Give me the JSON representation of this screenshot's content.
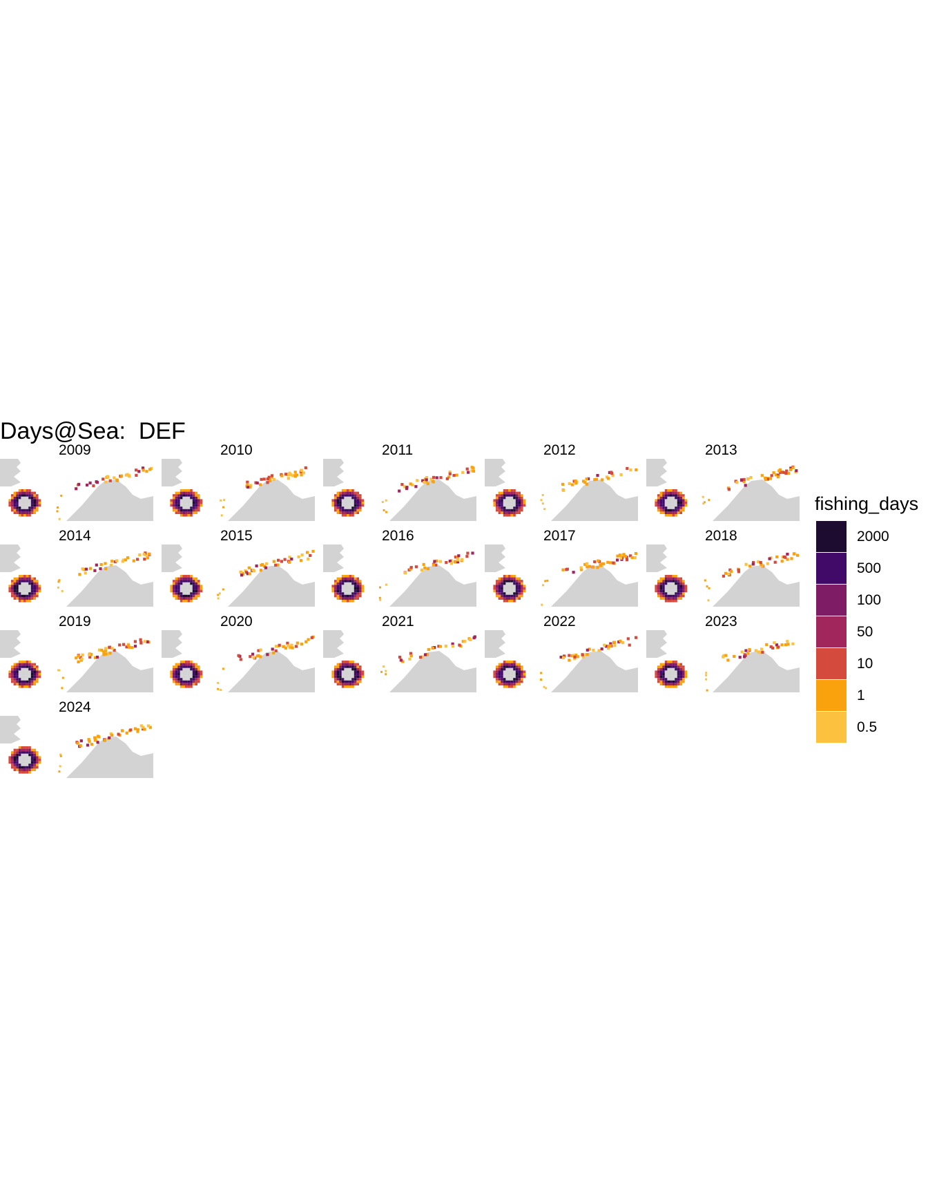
{
  "chart_data": {
    "type": "heatmap",
    "title": "Days@Sea:  DEF",
    "facet_labels": [
      "2009",
      "2010",
      "2011",
      "2012",
      "2013",
      "2014",
      "2015",
      "2016",
      "2017",
      "2018",
      "2019",
      "2020",
      "2021",
      "2022",
      "2023",
      "2024"
    ],
    "legend": {
      "title": "fishing_days",
      "placement": "right",
      "entries": [
        {
          "label": "2000",
          "color": "#1d0c2f"
        },
        {
          "label": "500",
          "color": "#420a68"
        },
        {
          "label": "100",
          "color": "#7e1d66"
        },
        {
          "label": "50",
          "color": "#a0265c"
        },
        {
          "label": "10",
          "color": "#d44a3c"
        },
        {
          "label": "1",
          "color": "#f9a20e"
        },
        {
          "label": "0.5",
          "color": "#fdc140"
        }
      ]
    },
    "land_color": "#d3d3d3",
    "grid": false
  }
}
